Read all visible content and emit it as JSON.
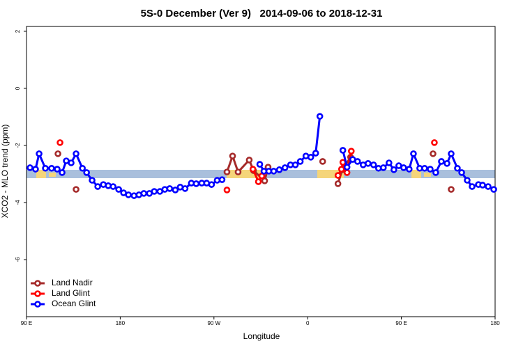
{
  "chart_data": {
    "type": "line",
    "title": "5S-0 December (Ver 9)   2014-09-06 to 2018-12-31",
    "x_label": "Longitude",
    "y_label": "XCO2 - MLO trend (ppm)",
    "xlim": [
      90,
      540
    ],
    "ylim": [
      -8.0,
      2.17
    ],
    "xticks": [
      {
        "value": 90,
        "label": "90 E"
      },
      180,
      {
        "value": 270,
        "label": "90 W"
      },
      {
        "value": 360,
        "label": "0"
      },
      {
        "value": 450,
        "label": "90 E"
      },
      {
        "value": 540,
        "label": "180"
      }
    ],
    "yticks": [
      -6,
      -4,
      -2,
      0,
      2
    ],
    "legend": "bottom-left",
    "series": [
      {
        "name": "Land Nadir",
        "color": "#a52a2a",
        "x": [
          120.2,
          null,
          137.6,
          null,
          282.5,
          287.9,
          293.2,
          303.9,
          308.0,
          318.7,
          322.0,
          null,
          374.4,
          null,
          389.1,
          393.2,
          401.2,
          null,
          480.4,
          null,
          497.8
        ],
        "values": [
          -2.29,
          null,
          -3.54,
          null,
          -2.93,
          -2.37,
          -2.93,
          -2.51,
          -2.88,
          -3.24,
          -2.76,
          null,
          -2.56,
          null,
          -3.34,
          -2.85,
          -2.41,
          null,
          -2.29,
          null,
          -3.54
        ]
      },
      {
        "name": "Land Glint",
        "color": "#ff0000",
        "x": [
          122.2,
          null,
          282.5,
          null,
          307.4,
          312.7,
          316.0,
          null,
          389.1,
          392.5,
          393.8,
          397.8,
          401.9,
          null,
          481.7
        ],
        "values": [
          -1.9,
          null,
          -3.56,
          null,
          -2.83,
          -3.27,
          -3.07,
          null,
          -3.05,
          -2.83,
          -2.59,
          -2.95,
          -2.2,
          null,
          -1.9
        ]
      },
      {
        "name": "Ocean Glint",
        "color": "#0000ff",
        "x": [
          93.4,
          98.7,
          102.1,
          108.1,
          114.1,
          119.5,
          124.2,
          128.2,
          132.9,
          137.6,
          143.7,
          147.7,
          153.0,
          158.4,
          163.8,
          168.5,
          173.2,
          178.5,
          183.2,
          187.9,
          193.3,
          198.0,
          202.7,
          208.0,
          212.7,
          218.1,
          222.8,
          227.5,
          232.9,
          237.6,
          242.3,
          248.3,
          253.0,
          258.3,
          263.0,
          267.7,
          273.1,
          277.8,
          null,
          314.0,
          318.0,
          322.7,
          327.4,
          332.8,
          338.2,
          343.5,
          348.2,
          352.9,
          358.3,
          363.0,
          367.7,
          371.7,
          null,
          393.8,
          397.8,
          403.2,
          407.9,
          413.3,
          418.0,
          423.3,
          428.0,
          432.7,
          438.1,
          442.8,
          447.5,
          452.2,
          457.5,
          461.6,
          467.6,
          472.3,
          477.7,
          483.0,
          488.4,
          493.8,
          497.8,
          503.8,
          507.9,
          513.2,
          517.9,
          524.0,
          528.0,
          533.3,
          538.7
        ],
        "values": [
          -2.78,
          -2.83,
          -2.29,
          -2.8,
          -2.8,
          -2.83,
          -2.95,
          -2.54,
          -2.61,
          -2.29,
          -2.8,
          -2.95,
          -3.22,
          -3.44,
          -3.37,
          -3.41,
          -3.44,
          -3.54,
          -3.66,
          -3.73,
          -3.76,
          -3.73,
          -3.68,
          -3.68,
          -3.61,
          -3.61,
          -3.54,
          -3.51,
          -3.56,
          -3.46,
          -3.51,
          -3.32,
          -3.34,
          -3.32,
          -3.32,
          -3.37,
          -3.22,
          -3.2,
          null,
          -2.66,
          -2.9,
          -2.9,
          -2.9,
          -2.85,
          -2.78,
          -2.68,
          -2.68,
          -2.56,
          -2.37,
          -2.41,
          -2.27,
          -0.98,
          null,
          -2.17,
          -2.76,
          -2.49,
          -2.56,
          -2.68,
          -2.63,
          -2.68,
          -2.8,
          -2.78,
          -2.61,
          -2.85,
          -2.71,
          -2.78,
          -2.83,
          -2.29,
          -2.8,
          -2.8,
          -2.83,
          -2.95,
          -2.56,
          -2.63,
          -2.29,
          -2.8,
          -2.95,
          -3.22,
          -3.44,
          -3.37,
          -3.39,
          -3.44,
          -3.54
        ]
      }
    ]
  }
}
